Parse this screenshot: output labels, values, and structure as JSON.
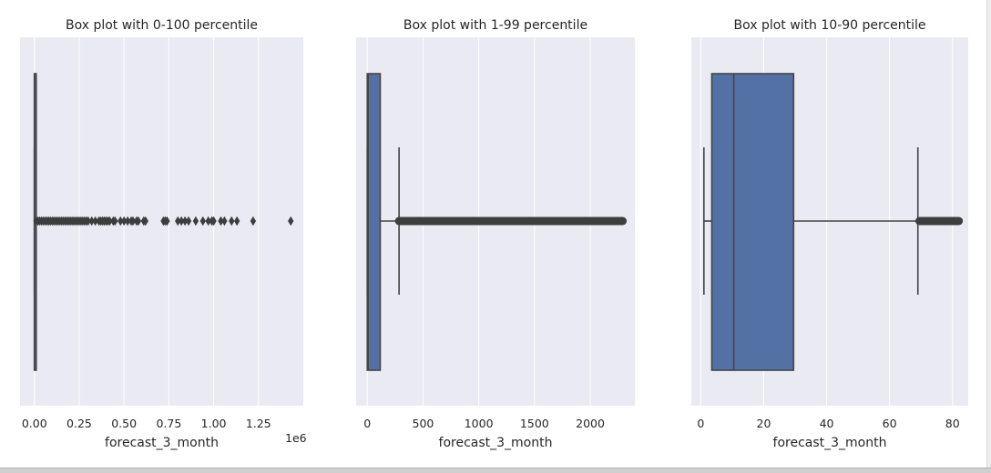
{
  "colors": {
    "box": "#5471a6",
    "edge": "#444444",
    "background": "#eaeaf2",
    "grid": "#ffffff",
    "text": "#262626"
  },
  "chart_data": [
    {
      "type": "box",
      "title": "Box plot with 0-100 percentile",
      "xlabel": "forecast_3_month",
      "offset_label": "1e6",
      "xlim": [
        -0.08,
        1.5
      ],
      "xticks": [
        0.0,
        0.25,
        0.5,
        0.75,
        1.0,
        1.25
      ],
      "xtick_labels": [
        "0.00",
        "0.25",
        "0.50",
        "0.75",
        "1.00",
        "1.25"
      ],
      "grid": true,
      "box": {
        "q1": 0.0,
        "median": 0.0,
        "q3": 0.0001,
        "whisker_low": 0.0,
        "whisker_high": 0.0003
      },
      "outliers": [
        0.01,
        0.02,
        0.03,
        0.04,
        0.05,
        0.06,
        0.07,
        0.08,
        0.09,
        0.1,
        0.11,
        0.12,
        0.13,
        0.14,
        0.15,
        0.16,
        0.17,
        0.18,
        0.19,
        0.2,
        0.21,
        0.22,
        0.23,
        0.24,
        0.25,
        0.26,
        0.27,
        0.28,
        0.29,
        0.3,
        0.32,
        0.34,
        0.36,
        0.37,
        0.38,
        0.39,
        0.4,
        0.41,
        0.42,
        0.44,
        0.45,
        0.48,
        0.5,
        0.52,
        0.54,
        0.55,
        0.57,
        0.58,
        0.61,
        0.62,
        0.72,
        0.73,
        0.74,
        0.8,
        0.82,
        0.84,
        0.86,
        0.9,
        0.94,
        0.97,
        0.99,
        1.0,
        1.04,
        1.06,
        1.1,
        1.13,
        1.22,
        1.43
      ]
    },
    {
      "type": "box",
      "title": "Box plot with 1-99 percentile",
      "xlabel": "forecast_3_month",
      "xlim": [
        -100,
        2400
      ],
      "xticks": [
        0,
        500,
        1000,
        1500,
        2000
      ],
      "xtick_labels": [
        "0",
        "500",
        "1000",
        "1500",
        "2000"
      ],
      "grid": true,
      "box": {
        "q1": 0,
        "median": 8,
        "q3": 116,
        "whisker_low": 0,
        "whisker_high": 285
      },
      "outlier_range": [
        285,
        2290
      ]
    },
    {
      "type": "box",
      "title": "Box plot with 10-90 percentile",
      "xlabel": "forecast_3_month",
      "xlim": [
        -3,
        85
      ],
      "xticks": [
        0,
        20,
        40,
        60,
        80
      ],
      "xtick_labels": [
        "0",
        "20",
        "40",
        "60",
        "80"
      ],
      "grid": true,
      "box": {
        "q1": 3.5,
        "median": 10.5,
        "q3": 29.5,
        "whisker_low": 1,
        "whisker_high": 69
      },
      "outlier_range": [
        69.5,
        82
      ]
    }
  ]
}
